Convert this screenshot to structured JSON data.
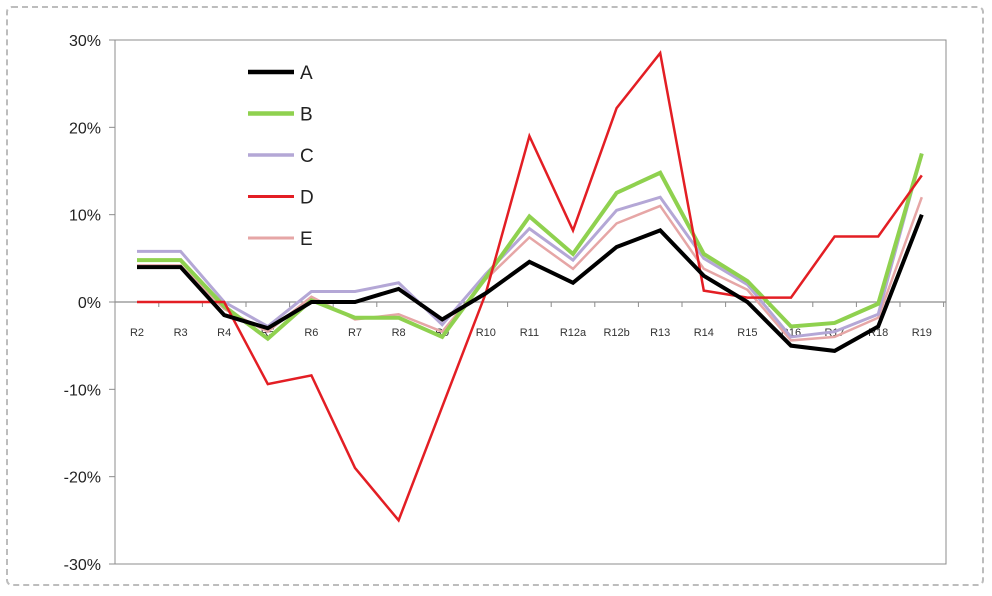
{
  "chart_data": {
    "type": "line",
    "title": "",
    "xlabel": "",
    "ylabel": "",
    "ylim": [
      -0.3,
      0.3
    ],
    "y_ticks": [
      {
        "value": 0.3,
        "label": "30%"
      },
      {
        "value": 0.2,
        "label": "20%"
      },
      {
        "value": 0.1,
        "label": "10%"
      },
      {
        "value": 0.0,
        "label": "0%"
      },
      {
        "value": -0.1,
        "label": "-10%"
      },
      {
        "value": -0.2,
        "label": "-20%"
      },
      {
        "value": -0.3,
        "label": "-30%"
      }
    ],
    "categories": [
      "R2",
      "R3",
      "R4",
      "R5",
      "R6",
      "R7",
      "R8",
      "R9",
      "R10",
      "R11",
      "R12a",
      "R12b",
      "R13",
      "R14",
      "R15",
      "R16",
      "R17",
      "R18",
      "R19"
    ],
    "legend_position": "top-left",
    "grid": false,
    "series": [
      {
        "name": "A",
        "color": "#000000",
        "width": 4,
        "values": [
          0.04,
          0.04,
          -0.015,
          -0.03,
          0.0,
          0.0,
          0.015,
          -0.02,
          0.01,
          0.046,
          0.022,
          0.063,
          0.082,
          0.03,
          0.0,
          -0.05,
          -0.056,
          -0.028,
          0.1
        ]
      },
      {
        "name": "B",
        "color": "#8fd14f",
        "width": 4,
        "values": [
          0.048,
          0.048,
          -0.005,
          -0.042,
          0.002,
          -0.018,
          -0.018,
          -0.04,
          0.028,
          0.098,
          0.055,
          0.125,
          0.148,
          0.055,
          0.024,
          -0.028,
          -0.024,
          -0.002,
          0.17
        ]
      },
      {
        "name": "C",
        "color": "#b4a7d6",
        "width": 3,
        "values": [
          0.058,
          0.058,
          0.0,
          -0.028,
          0.012,
          0.012,
          0.022,
          -0.026,
          0.032,
          0.084,
          0.048,
          0.105,
          0.12,
          0.05,
          0.02,
          -0.04,
          -0.034,
          -0.014,
          0.17
        ]
      },
      {
        "name": "D",
        "color": "#e31e24",
        "width": 2.5,
        "values": [
          0.0,
          0.0,
          0.0,
          -0.094,
          -0.084,
          -0.19,
          -0.25,
          -0.12,
          0.01,
          0.19,
          0.082,
          0.222,
          0.285,
          0.013,
          0.005,
          0.005,
          0.075,
          0.075,
          0.145
        ]
      },
      {
        "name": "E",
        "color": "#e6a6a6",
        "width": 2.5,
        "values": [
          0.042,
          0.042,
          -0.008,
          -0.034,
          0.006,
          -0.02,
          -0.014,
          -0.034,
          0.026,
          0.074,
          0.038,
          0.09,
          0.11,
          0.038,
          0.014,
          -0.044,
          -0.04,
          -0.018,
          0.12
        ]
      }
    ]
  }
}
